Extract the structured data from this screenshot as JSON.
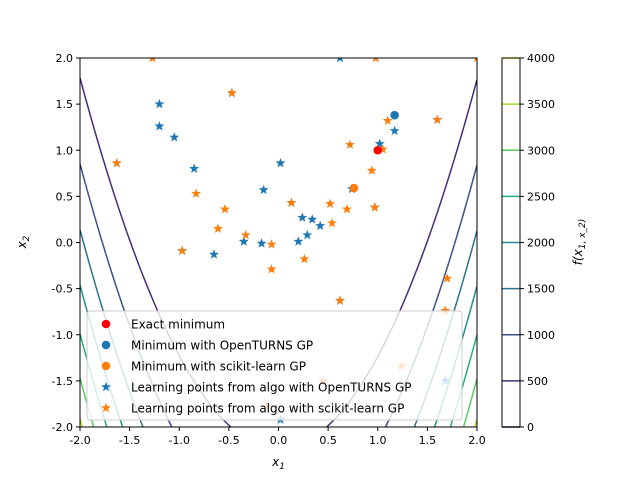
{
  "chart_data": {
    "type": "scatter",
    "xlabel": "x_1",
    "ylabel": "x_2",
    "xlim": [
      -2,
      2
    ],
    "ylim": [
      -2,
      2
    ],
    "xticks": [
      "-2.0",
      "-1.5",
      "-1.0",
      "-0.5",
      "0.0",
      "0.5",
      "1.0",
      "1.5",
      "2.0"
    ],
    "xtick_values": [
      -2,
      -1.5,
      -1,
      -0.5,
      0,
      0.5,
      1,
      1.5,
      2
    ],
    "yticks": [
      "-2.0",
      "-1.5",
      "-1.0",
      "-0.5",
      "0.0",
      "0.5",
      "1.0",
      "1.5",
      "2.0"
    ],
    "ytick_values": [
      -2,
      -1.5,
      -1,
      -0.5,
      0,
      0.5,
      1,
      1.5,
      2
    ],
    "grid": false,
    "legend_position": "lower-center",
    "contour": {
      "function": "rosenbrock",
      "levels": [
        500,
        1000,
        1500,
        2000,
        2500,
        3000,
        3500
      ],
      "colors": [
        "#472c7a",
        "#3b518b",
        "#2c718e",
        "#21908d",
        "#27ad81",
        "#5cc863",
        "#aadc32"
      ],
      "colorbar": {
        "label": "f(x_1, x_2)",
        "ticks": [
          "0",
          "500",
          "1000",
          "1500",
          "2000",
          "2500",
          "3000",
          "3500",
          "4000"
        ],
        "tick_values": [
          0,
          500,
          1000,
          1500,
          2000,
          2500,
          3000,
          3500,
          4000
        ],
        "tick_colors": [
          "#440154",
          "#472c7a",
          "#3b518b",
          "#2c718e",
          "#21908d",
          "#27ad81",
          "#5cc863",
          "#aadc32",
          "#fde725"
        ]
      }
    },
    "series": [
      {
        "name": "Exact minimum",
        "marker": "circle",
        "color": "#ff0000",
        "points": [
          [
            1.0,
            1.0
          ]
        ]
      },
      {
        "name": "Minimum with OpenTURNS GP",
        "marker": "circle",
        "color": "#1f77b4",
        "points": [
          [
            1.17,
            1.38
          ]
        ]
      },
      {
        "name": "Minimum with scikit-learn GP",
        "marker": "circle",
        "color": "#ff7f0e",
        "points": [
          [
            0.76,
            0.59
          ]
        ]
      },
      {
        "name": "Learning points from algo with OpenTURNS GP",
        "marker": "star",
        "color": "#1f77b4",
        "points": [
          [
            -1.2,
            1.5
          ],
          [
            -1.2,
            1.26
          ],
          [
            -1.05,
            1.14
          ],
          [
            -0.85,
            0.8
          ],
          [
            -0.65,
            -0.13
          ],
          [
            -0.35,
            0.01
          ],
          [
            -0.17,
            -0.01
          ],
          [
            -0.15,
            0.57
          ],
          [
            0.02,
            0.86
          ],
          [
            0.13,
            0.43
          ],
          [
            0.2,
            0.01
          ],
          [
            0.24,
            0.27
          ],
          [
            0.29,
            0.08
          ],
          [
            0.34,
            0.25
          ],
          [
            0.42,
            0.18
          ],
          [
            0.62,
            2.0
          ],
          [
            0.74,
            0.58
          ],
          [
            1.02,
            1.07
          ],
          [
            1.17,
            1.21
          ],
          [
            0.97,
            0.38
          ],
          [
            1.6,
            1.33
          ],
          [
            -1.63,
            0.86
          ],
          [
            -0.47,
            1.62
          ],
          [
            -0.97,
            -0.09
          ],
          [
            0.62,
            -0.63
          ],
          [
            0.02,
            -1.92
          ],
          [
            1.68,
            -1.5
          ]
        ]
      },
      {
        "name": "Learning points from algo with scikit-learn GP",
        "marker": "star",
        "color": "#ff7f0e",
        "points": [
          [
            -1.27,
            2.0
          ],
          [
            0.98,
            2.0
          ],
          [
            2.0,
            2.0
          ],
          [
            -1.63,
            0.86
          ],
          [
            -0.47,
            1.62
          ],
          [
            1.6,
            1.33
          ],
          [
            1.1,
            1.32
          ],
          [
            -0.83,
            0.53
          ],
          [
            -0.54,
            0.36
          ],
          [
            -0.61,
            0.15
          ],
          [
            -0.97,
            -0.09
          ],
          [
            -0.33,
            0.08
          ],
          [
            -0.07,
            -0.02
          ],
          [
            -0.07,
            -0.29
          ],
          [
            0.13,
            0.43
          ],
          [
            0.26,
            -0.18
          ],
          [
            0.52,
            0.42
          ],
          [
            0.54,
            0.21
          ],
          [
            0.69,
            0.36
          ],
          [
            0.72,
            1.06
          ],
          [
            0.94,
            0.78
          ],
          [
            0.97,
            0.38
          ],
          [
            1.05,
            1.01
          ],
          [
            1.7,
            -0.39
          ],
          [
            1.68,
            -0.74
          ],
          [
            0.62,
            -0.63
          ],
          [
            1.24,
            -1.34
          ],
          [
            -0.12,
            -1.78
          ],
          [
            0.45,
            -1.5
          ]
        ]
      }
    ]
  }
}
